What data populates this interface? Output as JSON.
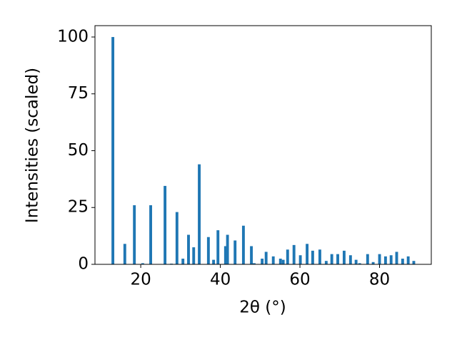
{
  "chart_data": {
    "type": "bar",
    "x": [
      13.0,
      16.0,
      18.4,
      20.5,
      22.5,
      26.1,
      27.7,
      29.1,
      30.6,
      32.0,
      33.3,
      34.7,
      37.0,
      38.3,
      39.4,
      41.3,
      41.8,
      43.7,
      45.8,
      47.8,
      48.5,
      50.5,
      51.5,
      53.3,
      55.1,
      55.8,
      56.9,
      58.5,
      60.1,
      61.8,
      63.2,
      65.0,
      66.6,
      68.0,
      69.5,
      71.1,
      72.7,
      74.1,
      75.0,
      77.0,
      78.4,
      80.0,
      81.5,
      82.9,
      84.3,
      85.8,
      87.2,
      88.6
    ],
    "values": [
      100,
      9,
      26,
      0.5,
      26,
      34.5,
      0.3,
      23,
      2.5,
      13,
      7.5,
      44,
      12,
      2,
      15,
      8,
      13,
      10.5,
      17,
      8,
      0.5,
      2.5,
      5.5,
      3.5,
      2.5,
      2,
      6.5,
      8.5,
      4,
      9,
      6,
      6.5,
      1.5,
      4.5,
      4.5,
      6,
      4,
      2,
      0.5,
      4.5,
      1,
      4.5,
      3.5,
      4,
      5.5,
      2.5,
      3.5,
      1.5
    ],
    "color": "#1f77b4",
    "xlabel": "2θ (°)",
    "ylabel": "Intensities (scaled)",
    "xlim": [
      8.5,
      93
    ],
    "ylim": [
      0,
      105
    ],
    "xticks": [
      20,
      40,
      60,
      80
    ],
    "yticks": [
      0,
      25,
      50,
      75,
      100
    ]
  }
}
